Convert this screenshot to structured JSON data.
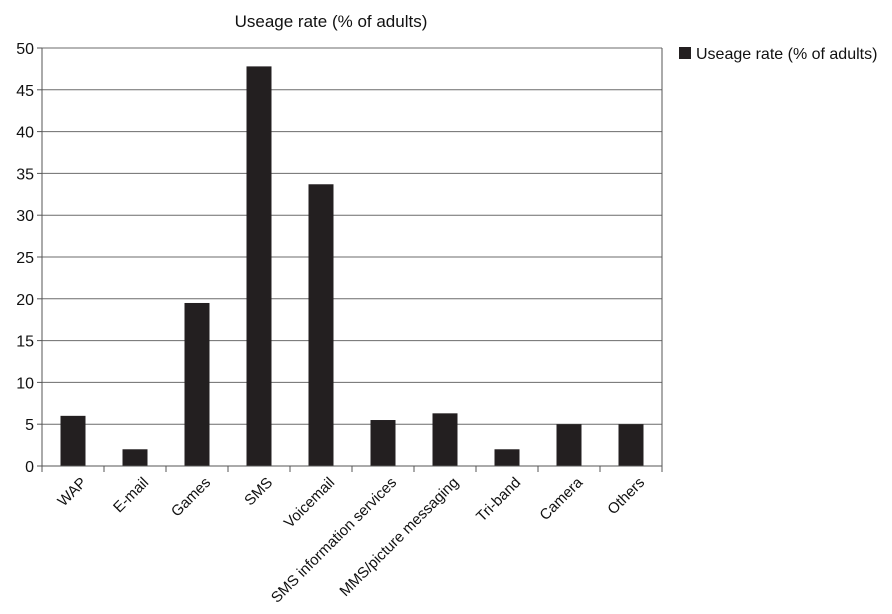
{
  "chart_data": {
    "type": "bar",
    "title": "Useage rate (% of adults)",
    "xlabel": "",
    "ylabel": "",
    "categories": [
      "WAP",
      "E-mail",
      "Games",
      "SMS",
      "Voicemail",
      "SMS information services",
      "MMS/picture messaging",
      "Tri-band",
      "Camera",
      "Others"
    ],
    "series": [
      {
        "name": "Useage rate (% of adults)",
        "values": [
          6,
          2,
          19.5,
          47.8,
          33.7,
          5.5,
          6.3,
          2,
          5,
          5
        ],
        "color": "#231f20"
      }
    ],
    "ylim": [
      0,
      50
    ],
    "yticks": [
      "0",
      "5",
      "10",
      "15",
      "20",
      "25",
      "30",
      "35",
      "40",
      "45",
      "50"
    ],
    "grid": true,
    "legend_position": "top-right"
  }
}
